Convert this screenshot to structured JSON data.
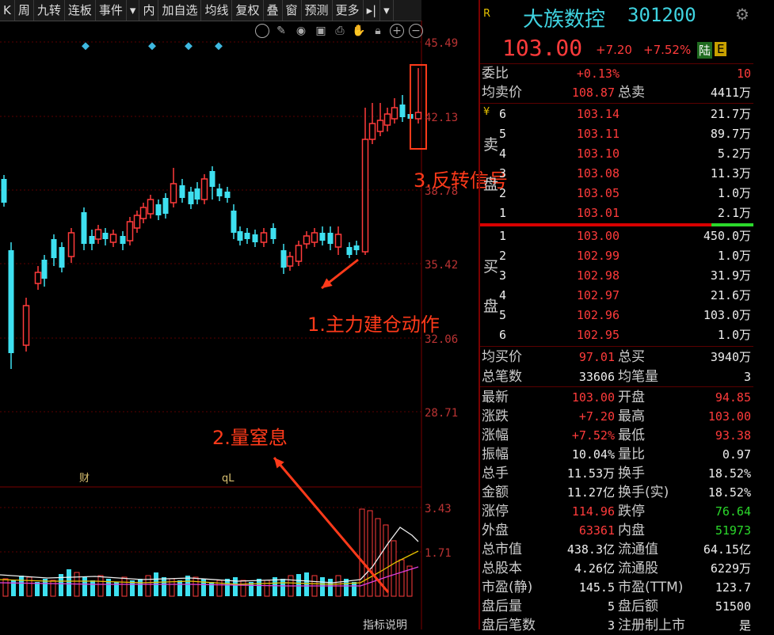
{
  "toolbar": {
    "items": [
      "K",
      "周",
      "九转",
      "连板",
      "事件",
      "▾",
      "内",
      "加自选",
      "均线",
      "复权",
      "叠",
      "窗",
      "预测",
      "更多",
      "▸|",
      "▾"
    ]
  },
  "chart": {
    "price_ticks": [
      "45.49",
      "42.13",
      "38.78",
      "35.42",
      "32.06",
      "28.71"
    ],
    "volume_ticks": [
      "3.43",
      "1.71"
    ],
    "markers": [
      "财",
      "qL"
    ],
    "bottom_label": "指标说明"
  },
  "annotations": {
    "a1": "1.主力建仓动作",
    "a2": "2.量窒息",
    "a3": "3.反转信号"
  },
  "quote": {
    "r_label": "R",
    "name": "大族数控",
    "code": "301200",
    "price": "103.00",
    "change": "+7.20",
    "change_pct": "+7.52%",
    "badge1": "陆",
    "badge2": "E",
    "weibi_label": "委比",
    "weibi_value": "+0.13%",
    "weibi_extra": "10",
    "avg_sell_label": "均卖价",
    "avg_sell_value": "108.87",
    "total_sell_label": "总卖",
    "total_sell_value": "4411万",
    "sell_side_label_1": "卖",
    "sell_side_label_2": "盘",
    "sell_yen": "¥",
    "sell_levels": [
      {
        "level": "6",
        "price": "103.14",
        "vol": "21.7万"
      },
      {
        "level": "5",
        "price": "103.11",
        "vol": "89.7万"
      },
      {
        "level": "4",
        "price": "103.10",
        "vol": "5.2万"
      },
      {
        "level": "3",
        "price": "103.08",
        "vol": "11.3万"
      },
      {
        "level": "2",
        "price": "103.05",
        "vol": "1.0万"
      },
      {
        "level": "1",
        "price": "103.01",
        "vol": "2.1万"
      }
    ],
    "buy_side_label_1": "买",
    "buy_side_label_2": "盘",
    "buy_levels": [
      {
        "level": "1",
        "price": "103.00",
        "vol": "450.0万"
      },
      {
        "level": "2",
        "price": "102.99",
        "vol": "1.0万"
      },
      {
        "level": "3",
        "price": "102.98",
        "vol": "31.9万"
      },
      {
        "level": "4",
        "price": "102.97",
        "vol": "21.6万"
      },
      {
        "level": "5",
        "price": "102.96",
        "vol": "103.0万"
      },
      {
        "level": "6",
        "price": "102.95",
        "vol": "1.0万"
      }
    ],
    "avg_buy_label": "均买价",
    "avg_buy_value": "97.01",
    "total_buy_label": "总买",
    "total_buy_value": "3940万",
    "total_trades_label": "总笔数",
    "total_trades_value": "33606",
    "avg_per_trade_label": "均笔量",
    "avg_per_trade_value": "3",
    "stats": [
      {
        "l1": "最新",
        "v1": "103.00",
        "c1": "red",
        "l2": "开盘",
        "v2": "94.85",
        "c2": "red"
      },
      {
        "l1": "涨跌",
        "v1": "+7.20",
        "c1": "red",
        "l2": "最高",
        "v2": "103.00",
        "c2": "red"
      },
      {
        "l1": "涨幅",
        "v1": "+7.52%",
        "c1": "red",
        "l2": "最低",
        "v2": "93.38",
        "c2": "red"
      },
      {
        "l1": "振幅",
        "v1": "10.04%",
        "c1": "white",
        "l2": "量比",
        "v2": "0.97",
        "c2": "white"
      },
      {
        "l1": "总手",
        "v1": "11.53万",
        "c1": "white",
        "l2": "换手",
        "v2": "18.52%",
        "c2": "white"
      },
      {
        "l1": "金额",
        "v1": "11.27亿",
        "c1": "white",
        "l2": "换手(实)",
        "v2": "18.52%",
        "c2": "white"
      },
      {
        "l1": "涨停",
        "v1": "114.96",
        "c1": "red",
        "l2": "跌停",
        "v2": "76.64",
        "c2": "green"
      },
      {
        "l1": "外盘",
        "v1": "63361",
        "c1": "red",
        "l2": "内盘",
        "v2": "51973",
        "c2": "green"
      },
      {
        "l1": "总市值",
        "v1": "438.3亿",
        "c1": "white",
        "l2": "流通值",
        "v2": "64.15亿",
        "c2": "white"
      },
      {
        "l1": "总股本",
        "v1": "4.26亿",
        "c1": "white",
        "l2": "流通股",
        "v2": "6229万",
        "c2": "white"
      },
      {
        "l1": "市盈(静)",
        "v1": "145.5",
        "c1": "white",
        "l2": "市盈(TTM)",
        "v2": "123.7",
        "c2": "white"
      },
      {
        "l1": "盘后量",
        "v1": "5",
        "c1": "white",
        "l2": "盘后额",
        "v2": "51500",
        "c2": "white"
      },
      {
        "l1": "盘后笔数",
        "v1": "3",
        "c1": "white",
        "l2": "注册制上市",
        "v2": "是",
        "c2": "white"
      }
    ]
  }
}
